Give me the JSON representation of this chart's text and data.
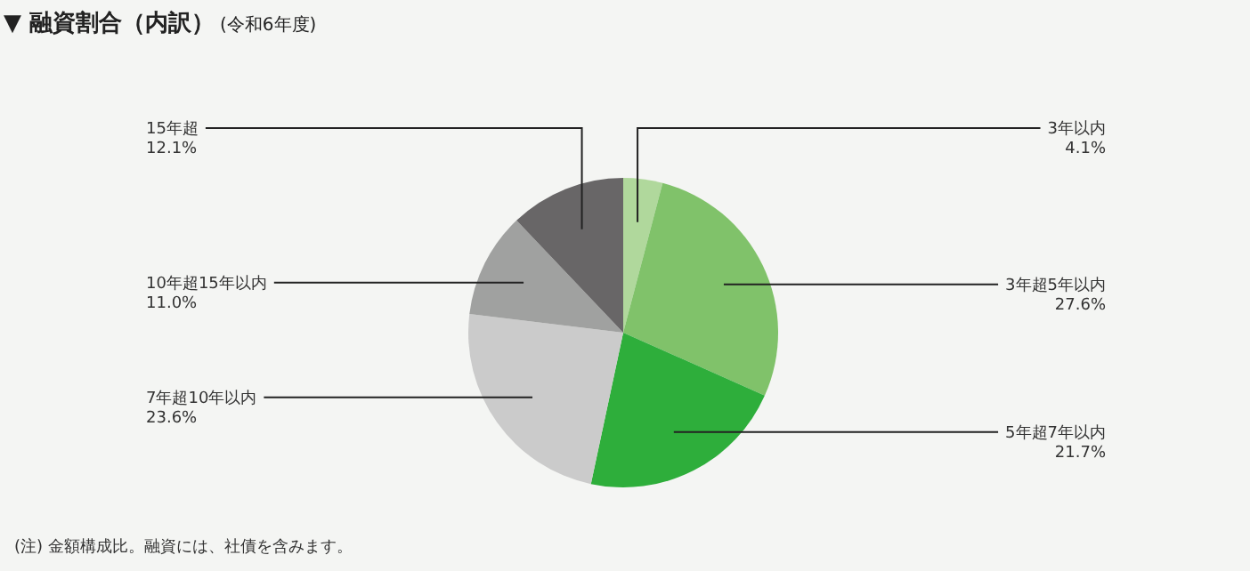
{
  "chart_data": {
    "type": "pie",
    "title": "▼ 融資割合（内訳）",
    "subtitle": "(令和6年度)",
    "categories": [
      "3年以内",
      "3年超5年以内",
      "5年超7年以内",
      "7年超10年以内",
      "10年超15年以内",
      "15年超"
    ],
    "values": [
      4.1,
      27.6,
      21.7,
      23.6,
      11.0,
      12.1
    ],
    "value_labels": [
      "4.1%",
      "27.6%",
      "21.7%",
      "23.6%",
      "11.0%",
      "12.1%"
    ],
    "colors": [
      "#b0d89c",
      "#80c26a",
      "#2eae3b",
      "#cbcbcb",
      "#a0a1a0",
      "#686667"
    ],
    "annotations": [
      "(注) 金額構成比。融資には、社債を含みます。"
    ]
  }
}
